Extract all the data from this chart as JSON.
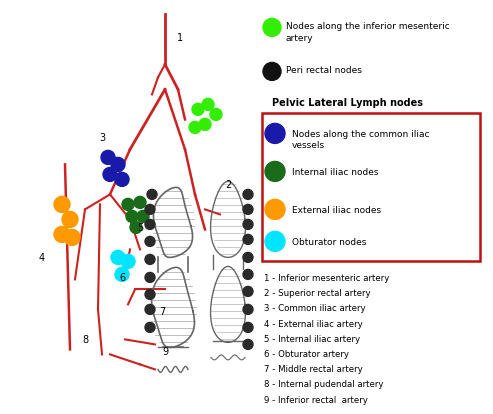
{
  "bg_color": "#ffffff",
  "legend_items_top": [
    {
      "color": "#33ee00",
      "label": "Nodes along the inferior mesenteric\nartery"
    },
    {
      "color": "#111111",
      "label": "Peri rectal nodes"
    }
  ],
  "pelvic_title": "Pelvic Lateral Lymph nodes",
  "legend_items_box": [
    {
      "color": "#1a1aaa",
      "label": "Nodes along the common iliac\nvessels"
    },
    {
      "color": "#1a6b1a",
      "label": "Internal iliac nodes"
    },
    {
      "color": "#ff9900",
      "label": "External iliac nodes"
    },
    {
      "color": "#00e5ff",
      "label": "Obturator nodes"
    }
  ],
  "numbered_items": [
    "1 - Inferior mesenteric artery",
    "2 - Superior rectal artery",
    "3 - Common iliac artery",
    "4 - External iliac artery",
    "5 - Internal iliac artery",
    "6 - Obturator artery",
    "7 - Middle rectal artery",
    "8 - Internal pudendal artery",
    "9 - Inferior rectal  artery"
  ],
  "artery_color": "#cc2222",
  "node_dark": "#2a2a2a",
  "node_green": "#33ee00",
  "node_blue": "#1a1aaa",
  "node_darkgreen": "#1a6b1a",
  "node_orange": "#ff9900",
  "node_cyan": "#00e5ff",
  "hatch_color": "#666666",
  "vessel_color": "#cc2222"
}
